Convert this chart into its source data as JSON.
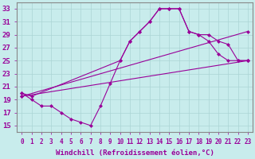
{
  "background_color": "#c8ecec",
  "grid_color": "#aad4d4",
  "line_color": "#990099",
  "marker": "D",
  "markersize": 2.5,
  "xlabel": "Windchill (Refroidissement éolien,°C)",
  "ylabel_ticks": [
    15,
    17,
    19,
    21,
    23,
    25,
    27,
    29,
    31,
    33
  ],
  "xlim": [
    -0.5,
    23.5
  ],
  "ylim": [
    14,
    34
  ],
  "xlabel_fontsize": 6.5,
  "ytick_fontsize": 6.5,
  "xtick_fontsize": 5.5,
  "curves": [
    {
      "x": [
        0,
        1,
        2,
        3,
        4,
        5,
        6,
        7,
        8,
        9,
        10,
        11,
        12,
        13,
        14,
        15,
        16,
        17,
        18,
        19,
        20,
        21,
        22,
        23
      ],
      "y": [
        20,
        19,
        18,
        18,
        17,
        16,
        15.5,
        15,
        18,
        21.5,
        25,
        28,
        29.5,
        31,
        33,
        33,
        33,
        29.5,
        29,
        28,
        26,
        25,
        25,
        25
      ]
    },
    {
      "x": [
        0,
        1,
        10,
        11,
        12,
        13,
        14,
        15,
        16,
        17,
        18,
        19,
        20,
        21,
        22,
        23
      ],
      "y": [
        20,
        19.5,
        25,
        28,
        29.5,
        31,
        33,
        33,
        33,
        29.5,
        29,
        29,
        28,
        27.5,
        25,
        25
      ]
    },
    {
      "x": [
        0,
        23
      ],
      "y": [
        19.5,
        29.5
      ]
    },
    {
      "x": [
        0,
        23
      ],
      "y": [
        19.5,
        25
      ]
    }
  ]
}
